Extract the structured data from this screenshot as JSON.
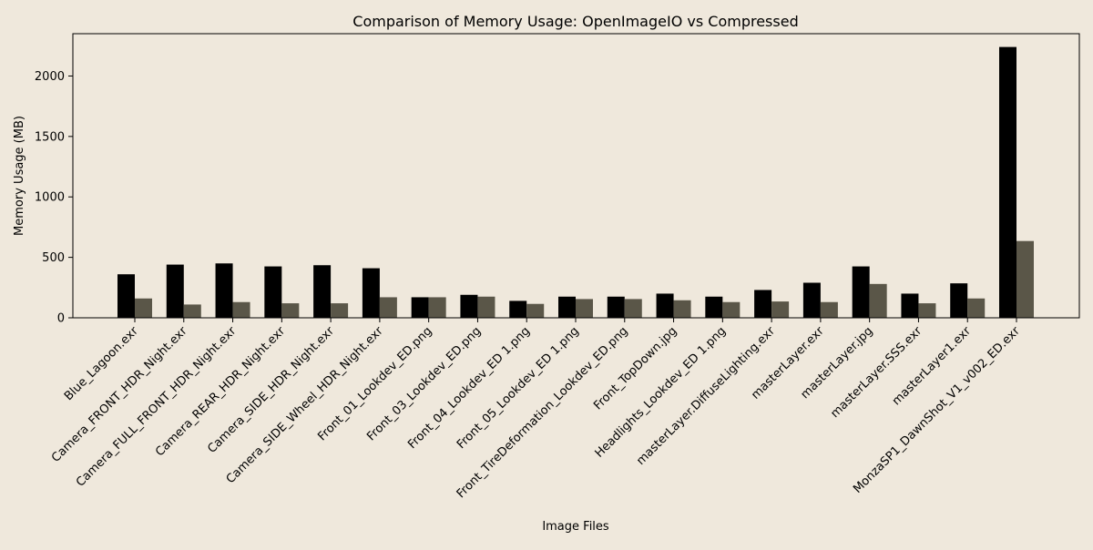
{
  "chart_data": {
    "type": "bar",
    "title": "Comparison of Memory Usage: OpenImageIO vs Compressed",
    "xlabel": "Image Files",
    "ylabel": "Memory Usage (MB)",
    "ylim": [
      0,
      2350
    ],
    "yticks": [
      0,
      500,
      1000,
      1500,
      2000
    ],
    "grid": false,
    "legend": "none",
    "categories": [
      "Blue_Lagoon.exr",
      "Camera_FRONT_HDR_Night.exr",
      "Camera_FULL_FRONT_HDR_Night.exr",
      "Camera_REAR_HDR_Night.exr",
      "Camera_SIDE_HDR_Night.exr",
      "Camera_SIDE_Wheel_HDR_Night.exr",
      "Front_01_Lookdev_ED.png",
      "Front_03_Lookdev_ED.png",
      "Front_04_Lookdev_ED 1.png",
      "Front_05_Lookdev_ED 1.png",
      "Front_TireDeformation_Lookdev_ED.png",
      "Front_TopDown.jpg",
      "Headlights_Lookdev_ED 1.png",
      "masterLayer.DiffuseLighting.exr",
      "masterLayer.exr",
      "masterLayer.jpg",
      "masterLayer.SSS.exr",
      "masterLayer1.exr",
      "MonzaSP1_DawnShot_V1_v002_ED.exr"
    ],
    "series": [
      {
        "color": "#000000",
        "values": [
          360,
          440,
          450,
          425,
          435,
          410,
          170,
          190,
          140,
          175,
          175,
          200,
          175,
          230,
          290,
          425,
          200,
          285,
          2240
        ]
      },
      {
        "color": "#5a5648",
        "values": [
          160,
          110,
          130,
          120,
          120,
          170,
          170,
          175,
          115,
          155,
          155,
          145,
          130,
          135,
          130,
          280,
          120,
          160,
          635
        ]
      }
    ]
  }
}
